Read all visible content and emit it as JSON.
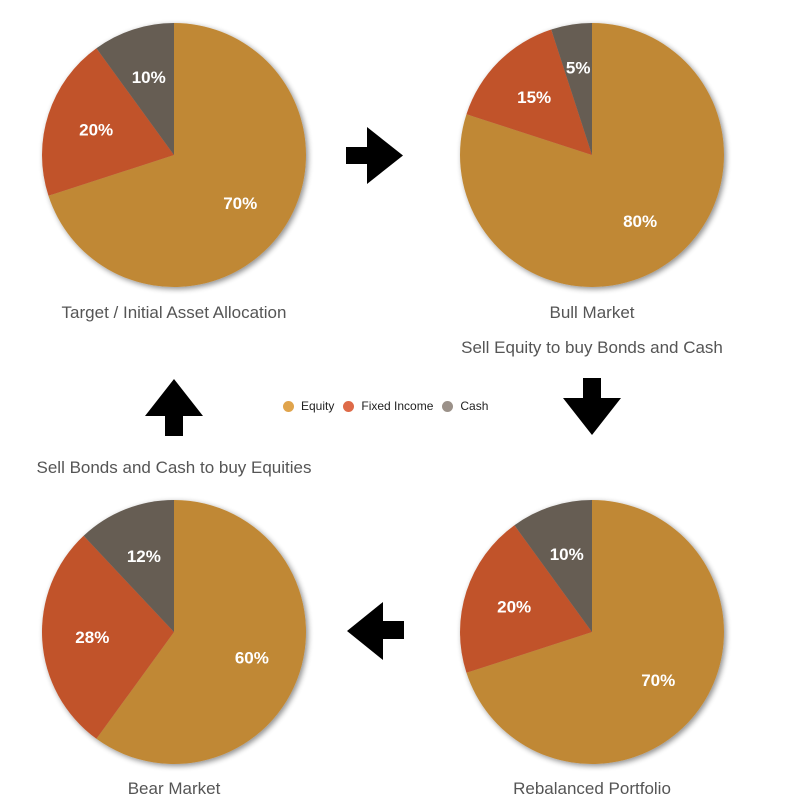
{
  "legend": [
    {
      "label": "Equity",
      "color": "#e0a44c"
    },
    {
      "label": "Fixed Income",
      "color": "#de6a48"
    },
    {
      "label": "Cash",
      "color": "#9b9189"
    }
  ],
  "slice_colors": {
    "Equity": "#c08836",
    "Fixed Income": "#c1532b",
    "Cash": "#665d53"
  },
  "captions": {
    "bull_action": "Sell Equity to buy Bonds and Cash",
    "bear_action": "Sell Bonds and Cash to buy Equities"
  },
  "chart_data": [
    {
      "type": "pie",
      "title": "Target / Initial Asset Allocation",
      "labels": [
        "Equity",
        "Fixed Income",
        "Cash"
      ],
      "values": [
        70,
        20,
        10
      ]
    },
    {
      "type": "pie",
      "title": "Bull Market",
      "labels": [
        "Equity",
        "Fixed Income",
        "Cash"
      ],
      "values": [
        80,
        15,
        5
      ]
    },
    {
      "type": "pie",
      "title": "Rebalanced Portfolio",
      "labels": [
        "Equity",
        "Fixed Income",
        "Cash"
      ],
      "values": [
        70,
        20,
        10
      ]
    },
    {
      "type": "pie",
      "title": "Bear Market",
      "labels": [
        "Equity",
        "Fixed Income",
        "Cash"
      ],
      "values": [
        60,
        28,
        12
      ]
    }
  ]
}
